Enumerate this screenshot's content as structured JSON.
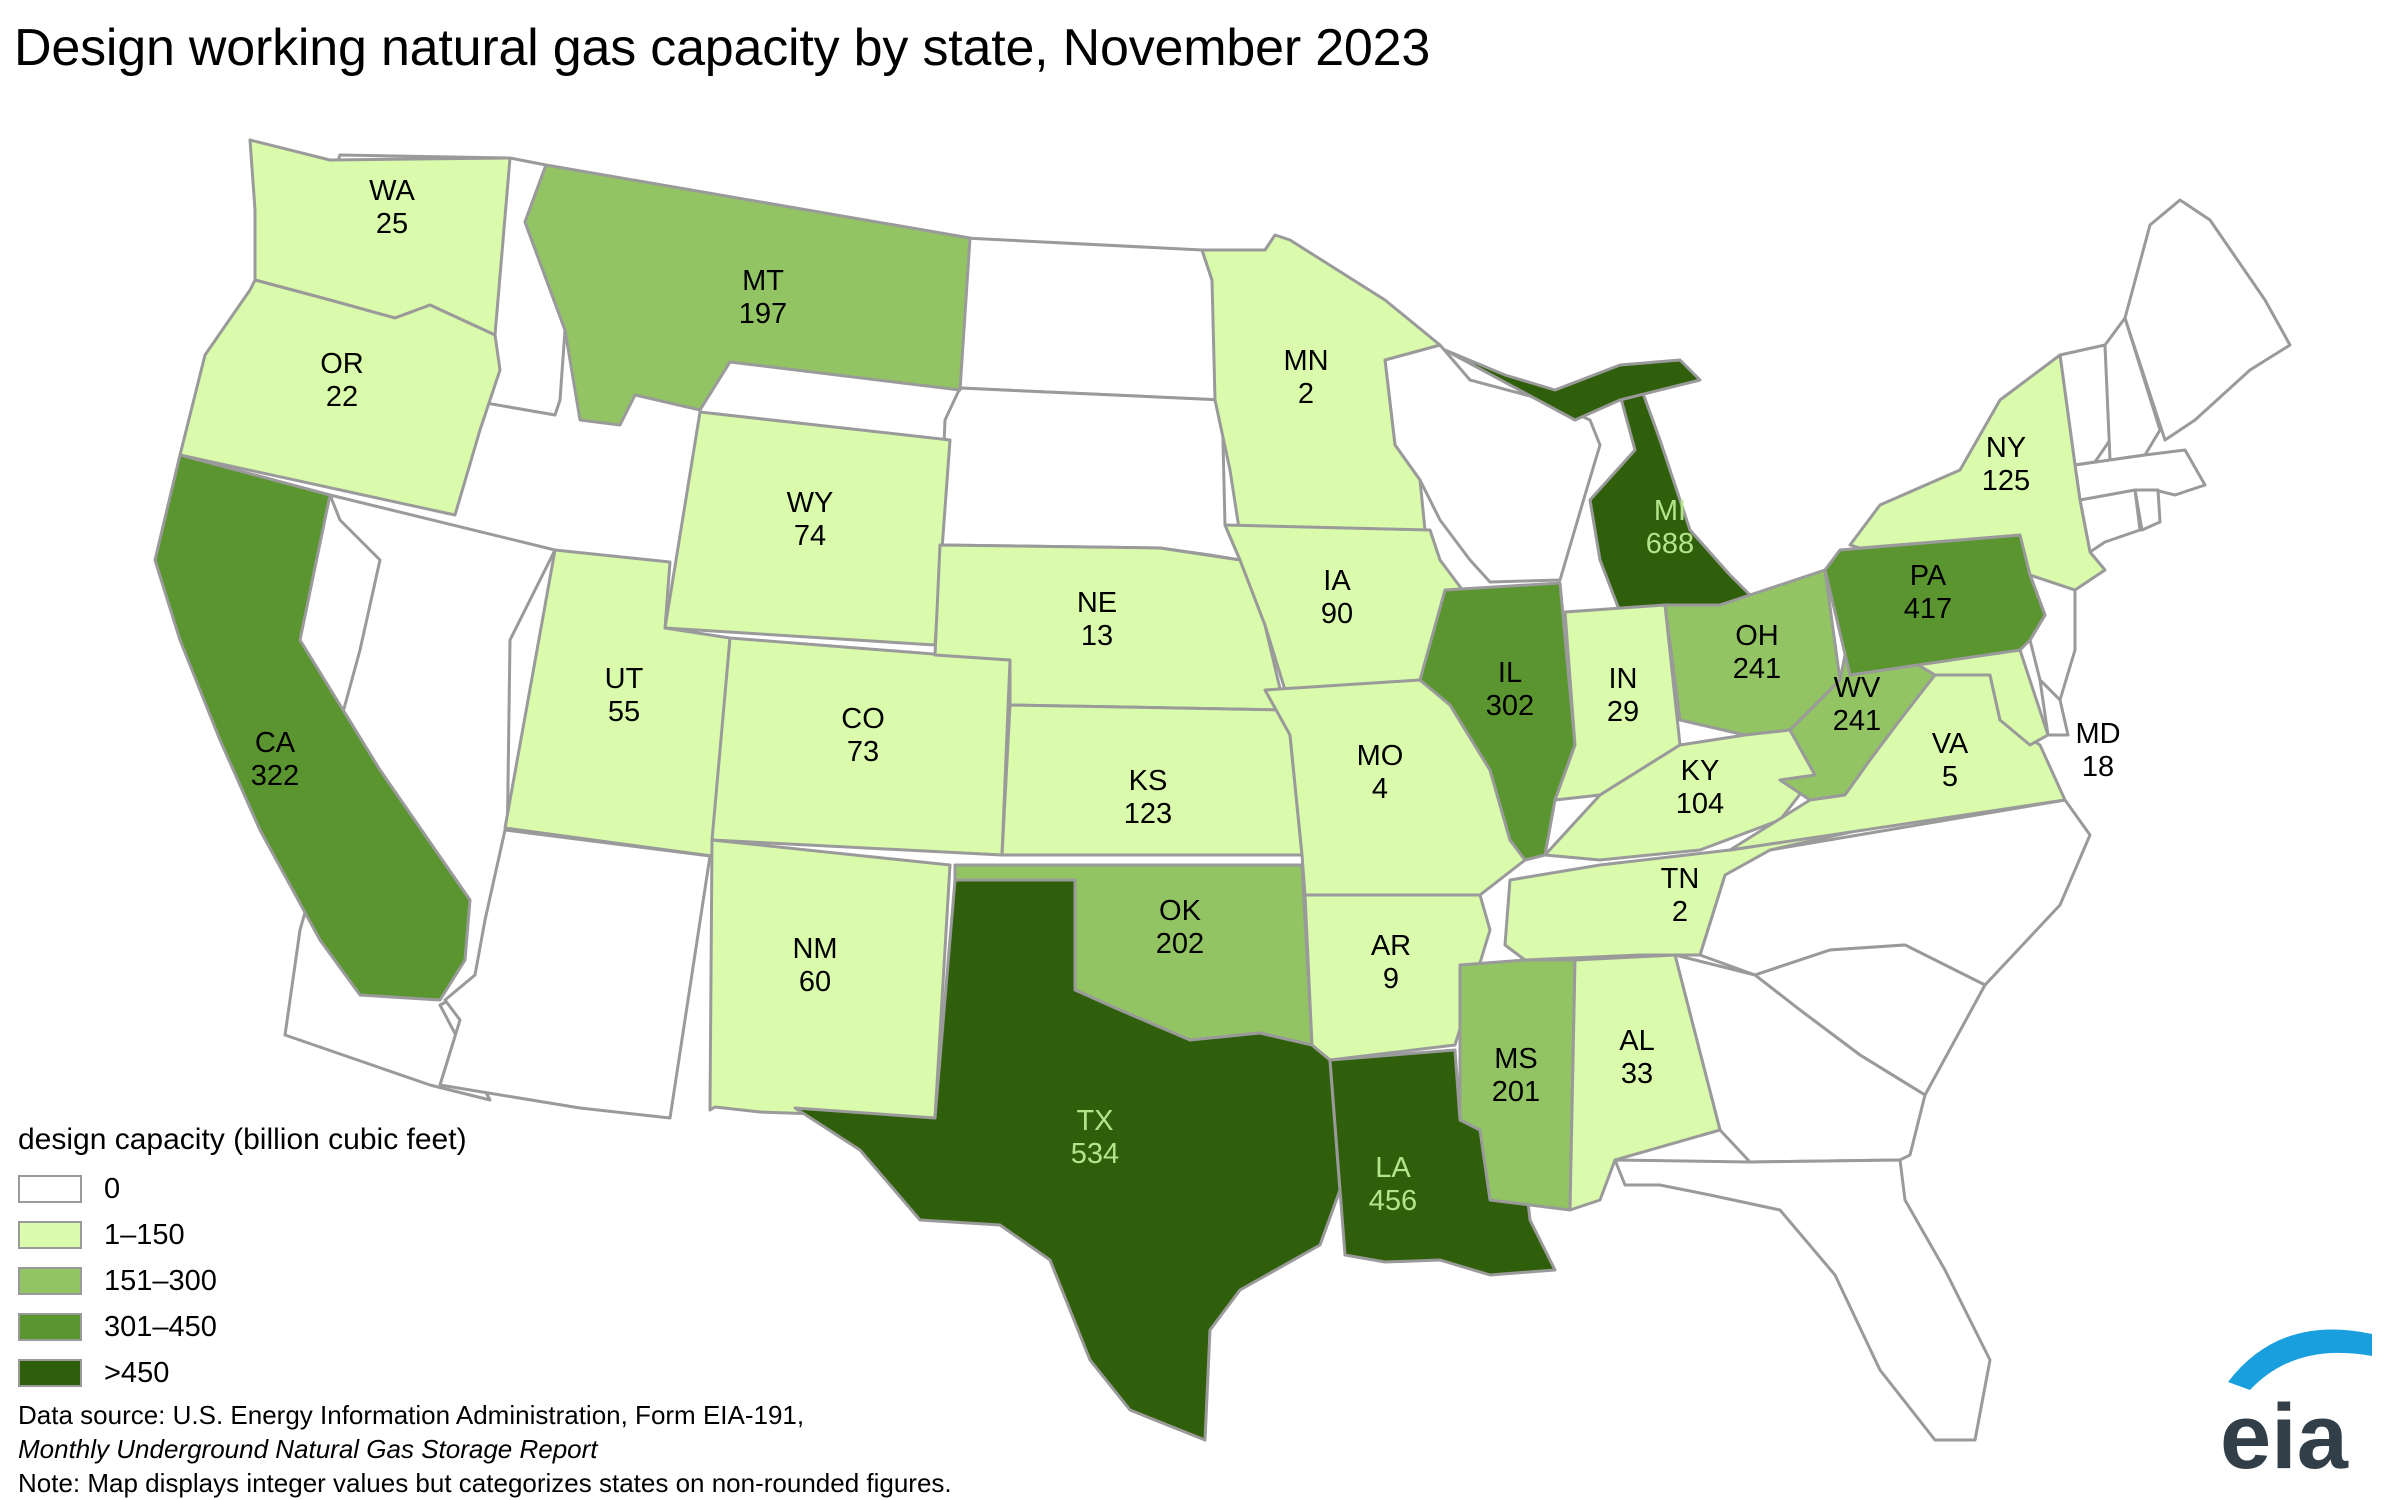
{
  "title": "Design working natural gas capacity by state, November 2023",
  "legend": {
    "title": "design capacity (billion cubic feet)",
    "bins": [
      {
        "label": "0",
        "color": "#ffffff"
      },
      {
        "label": "1–150",
        "color": "#d9fbab"
      },
      {
        "label": "151–300",
        "color": "#93c464"
      },
      {
        "label": "301–450",
        "color": "#5a952f"
      },
      {
        "label": ">450",
        "color": "#2f5f0b"
      }
    ]
  },
  "map_data": {
    "unit": "billion cubic feet",
    "labeled_states": [
      {
        "abbr": "WA",
        "value": "25",
        "bin": 1
      },
      {
        "abbr": "OR",
        "value": "22",
        "bin": 1
      },
      {
        "abbr": "CA",
        "value": "322",
        "bin": 3
      },
      {
        "abbr": "MT",
        "value": "197",
        "bin": 2
      },
      {
        "abbr": "WY",
        "value": "74",
        "bin": 1
      },
      {
        "abbr": "UT",
        "value": "55",
        "bin": 1
      },
      {
        "abbr": "CO",
        "value": "73",
        "bin": 1
      },
      {
        "abbr": "NM",
        "value": "60",
        "bin": 1
      },
      {
        "abbr": "NE",
        "value": "13",
        "bin": 1
      },
      {
        "abbr": "KS",
        "value": "123",
        "bin": 1
      },
      {
        "abbr": "OK",
        "value": "202",
        "bin": 2
      },
      {
        "abbr": "TX",
        "value": "534",
        "bin": 4
      },
      {
        "abbr": "MN",
        "value": "2",
        "bin": 1
      },
      {
        "abbr": "IA",
        "value": "90",
        "bin": 1
      },
      {
        "abbr": "MO",
        "value": "4",
        "bin": 1
      },
      {
        "abbr": "AR",
        "value": "9",
        "bin": 1
      },
      {
        "abbr": "LA",
        "value": "456",
        "bin": 4
      },
      {
        "abbr": "IL",
        "value": "302",
        "bin": 3
      },
      {
        "abbr": "MI",
        "value": "688",
        "bin": 4
      },
      {
        "abbr": "IN",
        "value": "29",
        "bin": 1
      },
      {
        "abbr": "OH",
        "value": "241",
        "bin": 2
      },
      {
        "abbr": "KY",
        "value": "104",
        "bin": 1
      },
      {
        "abbr": "TN",
        "value": "2",
        "bin": 1
      },
      {
        "abbr": "MS",
        "value": "201",
        "bin": 2
      },
      {
        "abbr": "AL",
        "value": "33",
        "bin": 1
      },
      {
        "abbr": "WV",
        "value": "241",
        "bin": 2
      },
      {
        "abbr": "VA",
        "value": "5",
        "bin": 1
      },
      {
        "abbr": "PA",
        "value": "417",
        "bin": 3
      },
      {
        "abbr": "NY",
        "value": "125",
        "bin": 1
      },
      {
        "abbr": "MD",
        "value": "18",
        "bin": 1
      }
    ]
  },
  "source": {
    "line1": "Data source: U.S. Energy Information Administration, Form EIA-191,",
    "line2": "Monthly Underground Natural Gas Storage Report",
    "line3": "Note: Map displays integer values but categorizes states on non-rounded figures."
  },
  "logo": {
    "text": "eia",
    "colors": {
      "arc": "#1a9fde",
      "text": "#333f48"
    }
  }
}
